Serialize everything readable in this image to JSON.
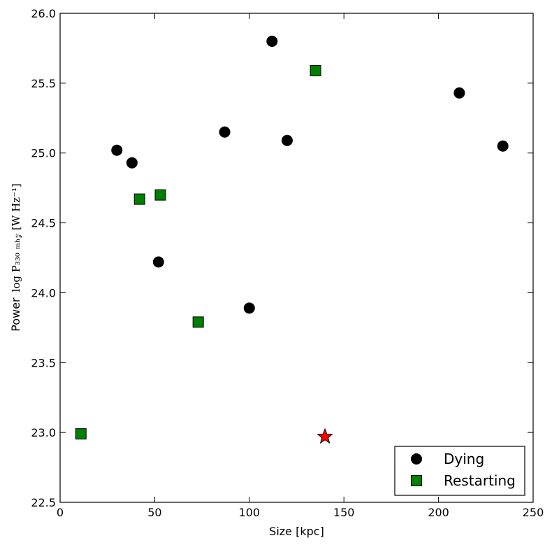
{
  "chart_data": {
    "type": "scatter",
    "xlabel": "Size [kpc]",
    "ylabel_prefix": "Power",
    "ylabel_math": "log P₃₃₀ ₘₕ𝓏 [W Hz⁻¹]",
    "xlim": [
      0,
      250
    ],
    "ylim": [
      22.5,
      26.0
    ],
    "x_ticks": [
      "0",
      "50",
      "100",
      "150",
      "200",
      "250"
    ],
    "y_ticks": [
      "22.5",
      "23.0",
      "23.5",
      "24.0",
      "24.5",
      "25.0",
      "25.5",
      "26.0"
    ],
    "grid": false,
    "legend_position": "lower-right",
    "series": [
      {
        "name": "Dying",
        "marker": "circle",
        "color": "#000000",
        "points": [
          {
            "x": 30,
            "y": 25.02
          },
          {
            "x": 38,
            "y": 24.93
          },
          {
            "x": 52,
            "y": 24.22
          },
          {
            "x": 87,
            "y": 25.15
          },
          {
            "x": 100,
            "y": 23.89
          },
          {
            "x": 112,
            "y": 25.8
          },
          {
            "x": 120,
            "y": 25.09
          },
          {
            "x": 211,
            "y": 25.43
          },
          {
            "x": 234,
            "y": 25.05
          }
        ]
      },
      {
        "name": "Restarting",
        "marker": "square",
        "color": "#008000",
        "points": [
          {
            "x": 11,
            "y": 22.99
          },
          {
            "x": 42,
            "y": 24.67
          },
          {
            "x": 53,
            "y": 24.7
          },
          {
            "x": 73,
            "y": 23.79
          },
          {
            "x": 135,
            "y": 25.59
          }
        ]
      }
    ],
    "extra_points": [
      {
        "marker": "star",
        "color": "#ff0000",
        "x": 140,
        "y": 22.97
      }
    ]
  }
}
